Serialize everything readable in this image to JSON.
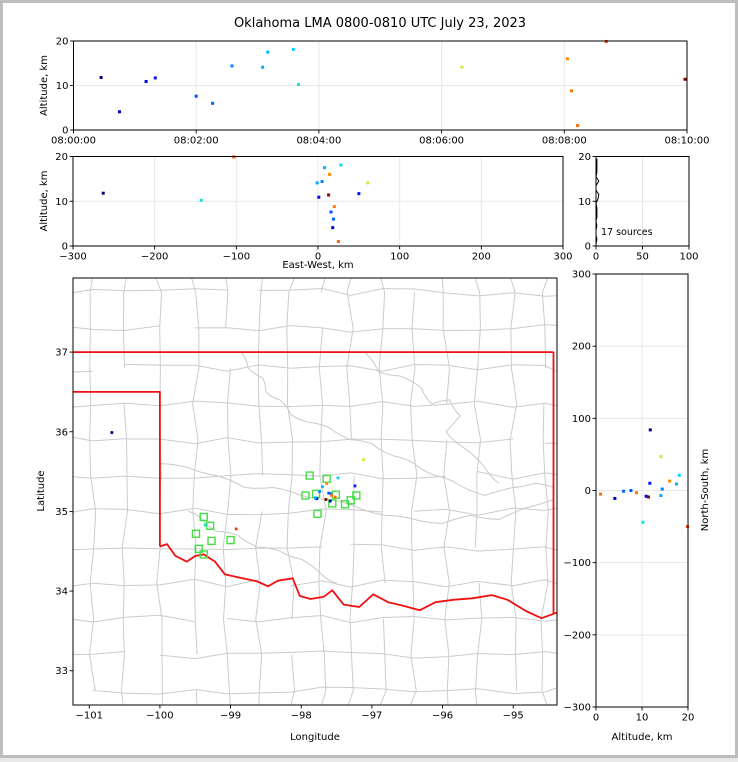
{
  "title": "Oklahoma LMA 0800-0810 UTC July 23, 2023",
  "annotation": {
    "sources_count_label": "17 sources"
  },
  "colors": {
    "background": "#ffffff",
    "frame": "#bdbdbd",
    "axis": "#000000",
    "grid": "#e7e7e7",
    "county_line": "#cbcbcb",
    "river": "#c9c9c9",
    "state_border": "#f01010",
    "station_marker": "#44dd44",
    "histogram_line": "#000000"
  },
  "panels": {
    "time_height": {
      "ylabel": "Altitude, km",
      "xlim_s": [
        0,
        600
      ],
      "ylim_km": [
        0,
        20
      ],
      "xtick_values_s": [
        0,
        120,
        240,
        360,
        480,
        600
      ],
      "xtick_labels": [
        "08:00:00",
        "08:02:00",
        "08:04:00",
        "08:06:00",
        "08:08:00",
        "08:10:00"
      ],
      "ytick_values": [
        0,
        10,
        20
      ],
      "ytick_labels": [
        "0",
        "10",
        "20"
      ],
      "grid": true
    },
    "ew_height": {
      "xlabel": "East-West, km",
      "ylabel": "Altitude, km",
      "xlim_km": [
        -300,
        300
      ],
      "ylim_km": [
        0,
        20
      ],
      "xtick_values": [
        -300,
        -200,
        -100,
        0,
        100,
        200,
        300
      ],
      "xtick_labels": [
        "−300",
        "−200",
        "−100",
        "0",
        "100",
        "200",
        "300"
      ],
      "ytick_values": [
        0,
        10,
        20
      ],
      "ytick_labels": [
        "0",
        "10",
        "20"
      ],
      "grid": true
    },
    "height_histogram": {
      "xlim_sources": [
        0,
        100
      ],
      "ylim_km": [
        0,
        20
      ],
      "xtick_values": [
        0,
        50,
        100
      ],
      "xtick_labels": [
        "0",
        "50",
        "100"
      ],
      "ytick_values": [
        0,
        10,
        20
      ],
      "ytick_labels": [
        "0",
        "10",
        "20"
      ],
      "grid": true
    },
    "plan_view": {
      "xlabel": "Longitude",
      "ylabel": "Latitude",
      "xlim_deg": [
        -101.23,
        -94.38
      ],
      "ylim_deg": [
        32.57,
        37.93
      ],
      "xtick_values": [
        -101,
        -100,
        -99,
        -98,
        -97,
        -96,
        -95
      ],
      "xtick_labels": [
        "−101",
        "−100",
        "−99",
        "−98",
        "−97",
        "−96",
        "−95"
      ],
      "ytick_values": [
        33,
        34,
        35,
        36,
        37
      ],
      "ytick_labels": [
        "33",
        "34",
        "35",
        "36",
        "37"
      ],
      "grid": false
    },
    "ns_height": {
      "xlabel": "Altitude, km",
      "ylabel": "North-South, km",
      "xlim_km": [
        0,
        20
      ],
      "ylim_km": [
        -300,
        300
      ],
      "xtick_values": [
        0,
        10,
        20
      ],
      "xtick_labels": [
        "0",
        "10",
        "20"
      ],
      "ytick_values": [
        -300,
        -200,
        -100,
        0,
        100,
        200,
        300
      ],
      "ytick_labels": [
        "−300",
        "−200",
        "−100",
        "0",
        "100",
        "200",
        "300"
      ],
      "grid": true
    }
  },
  "chart_data": {
    "type": "scatter",
    "title": "Oklahoma LMA 0800-0810 UTC July 23, 2023",
    "sources": [
      {
        "time_s": 27,
        "ew_km": -263,
        "ns_km": 84,
        "alt_km": 11.8,
        "lon": -100.68,
        "lat": 35.99,
        "color": "#000080"
      },
      {
        "time_s": 45,
        "ew_km": 18,
        "ns_km": -11,
        "alt_km": 4.1,
        "lon": -97.59,
        "lat": 35.13,
        "color": "#0000cd"
      },
      {
        "time_s": 71,
        "ew_km": 1,
        "ns_km": -8,
        "alt_km": 10.9,
        "lon": -97.78,
        "lat": 35.16,
        "color": "#0000e8"
      },
      {
        "time_s": 80,
        "ew_km": 50,
        "ns_km": 10,
        "alt_km": 11.7,
        "lon": -97.24,
        "lat": 35.32,
        "color": "#0014ff"
      },
      {
        "time_s": 120,
        "ew_km": 16,
        "ns_km": 0,
        "alt_km": 7.6,
        "lon": -97.61,
        "lat": 35.23,
        "color": "#0050ff"
      },
      {
        "time_s": 136,
        "ew_km": 19,
        "ns_km": -1,
        "alt_km": 6.0,
        "lon": -97.58,
        "lat": 35.22,
        "color": "#0064ff"
      },
      {
        "time_s": 155,
        "ew_km": 5,
        "ns_km": 2,
        "alt_km": 14.4,
        "lon": -97.74,
        "lat": 35.25,
        "color": "#0082ff"
      },
      {
        "time_s": 185,
        "ew_km": -1,
        "ns_km": -7,
        "alt_km": 14.1,
        "lon": -97.8,
        "lat": 35.17,
        "color": "#00a8ff"
      },
      {
        "time_s": 190,
        "ew_km": 8,
        "ns_km": 9,
        "alt_km": 17.5,
        "lon": -97.7,
        "lat": 35.31,
        "color": "#00b6ff"
      },
      {
        "time_s": 215,
        "ew_km": 28,
        "ns_km": 21,
        "alt_km": 18.1,
        "lon": -97.48,
        "lat": 35.42,
        "color": "#00d4ff"
      },
      {
        "time_s": 220,
        "ew_km": -143,
        "ns_km": -44,
        "alt_km": 10.2,
        "lon": -99.36,
        "lat": 34.83,
        "color": "#14e0e0"
      },
      {
        "time_s": 380,
        "ew_km": 61,
        "ns_km": 47,
        "alt_km": 14.1,
        "lon": -97.12,
        "lat": 35.65,
        "color": "#d6e632"
      },
      {
        "time_s": 483,
        "ew_km": 14,
        "ns_km": 13,
        "alt_km": 16.0,
        "lon": -97.64,
        "lat": 35.35,
        "color": "#ff8c00"
      },
      {
        "time_s": 487,
        "ew_km": 20,
        "ns_km": -3,
        "alt_km": 8.8,
        "lon": -97.57,
        "lat": 35.2,
        "color": "#ff7a00"
      },
      {
        "time_s": 493,
        "ew_km": 25,
        "ns_km": -5,
        "alt_km": 1.0,
        "lon": -97.52,
        "lat": 35.18,
        "color": "#ff6a00"
      },
      {
        "time_s": 521,
        "ew_km": -103,
        "ns_km": -50,
        "alt_km": 19.9,
        "lon": -98.92,
        "lat": 34.78,
        "color": "#ff3c00"
      },
      {
        "time_s": 598,
        "ew_km": 13,
        "ns_km": -9,
        "alt_km": 11.4,
        "lon": -97.65,
        "lat": 35.15,
        "color": "#8b0000"
      }
    ],
    "stations_lonlat": [
      [
        -97.88,
        35.45
      ],
      [
        -97.64,
        35.41
      ],
      [
        -97.79,
        35.22
      ],
      [
        -97.94,
        35.2
      ],
      [
        -97.51,
        35.21
      ],
      [
        -97.56,
        35.1
      ],
      [
        -97.38,
        35.09
      ],
      [
        -97.22,
        35.2
      ],
      [
        -97.3,
        35.14
      ],
      [
        -97.77,
        34.97
      ],
      [
        -99.38,
        34.93
      ],
      [
        -99.29,
        34.82
      ],
      [
        -99.49,
        34.72
      ],
      [
        -99.27,
        34.63
      ],
      [
        -99.0,
        34.64
      ],
      [
        -99.45,
        34.53
      ],
      [
        -99.38,
        34.46
      ]
    ],
    "altitude_histogram": {
      "bin_centers_km": [
        0.5,
        1.5,
        2.5,
        3.5,
        4.5,
        5.5,
        6.5,
        7.5,
        8.5,
        9.5,
        10.5,
        11.5,
        12.5,
        13.5,
        14.5,
        15.5,
        16.5,
        17.5,
        18.5,
        19.5
      ],
      "counts": [
        0,
        1,
        0,
        0,
        1,
        0,
        1,
        1,
        1,
        0,
        2,
        3,
        0,
        0,
        3,
        0,
        1,
        1,
        1,
        1
      ]
    },
    "map_geometry": {
      "state_border_segments": [
        [
          [
            -101.23,
            37.0
          ],
          [
            -94.43,
            37.0
          ]
        ],
        [
          [
            -94.43,
            37.0
          ],
          [
            -94.43,
            33.72
          ]
        ],
        [
          [
            -101.23,
            36.5
          ],
          [
            -100.0,
            36.5
          ],
          [
            -100.0,
            34.56
          ]
        ],
        [
          [
            -100.0,
            34.56
          ],
          [
            -99.9,
            34.59
          ],
          [
            -99.78,
            34.44
          ],
          [
            -99.62,
            34.37
          ],
          [
            -99.5,
            34.44
          ],
          [
            -99.38,
            34.46
          ],
          [
            -99.22,
            34.37
          ],
          [
            -99.08,
            34.21
          ],
          [
            -98.88,
            34.17
          ],
          [
            -98.62,
            34.12
          ],
          [
            -98.47,
            34.06
          ],
          [
            -98.33,
            34.13
          ],
          [
            -98.12,
            34.16
          ],
          [
            -98.02,
            33.94
          ],
          [
            -97.87,
            33.9
          ],
          [
            -97.68,
            33.93
          ],
          [
            -97.56,
            34.01
          ],
          [
            -97.4,
            33.83
          ],
          [
            -97.18,
            33.8
          ],
          [
            -96.98,
            33.96
          ],
          [
            -96.77,
            33.86
          ],
          [
            -96.58,
            33.82
          ],
          [
            -96.32,
            33.76
          ],
          [
            -96.1,
            33.86
          ],
          [
            -95.85,
            33.89
          ],
          [
            -95.58,
            33.91
          ],
          [
            -95.3,
            33.95
          ],
          [
            -95.08,
            33.89
          ],
          [
            -94.82,
            33.75
          ],
          [
            -94.6,
            33.66
          ],
          [
            -94.38,
            33.73
          ]
        ]
      ],
      "county_grid_lons": [
        -100.95,
        -100.5,
        -100.0,
        -99.5,
        -99.05,
        -98.6,
        -98.15,
        -97.7,
        -97.3,
        -96.85,
        -96.4,
        -95.95,
        -95.5,
        -95.0,
        -94.55
      ],
      "county_grid_lats": [
        32.75,
        33.2,
        33.65,
        34.1,
        34.55,
        35.0,
        35.45,
        35.9,
        36.35,
        36.8,
        37.3,
        37.75
      ],
      "rivers": [
        [
          [
            -98.85,
            37.0
          ],
          [
            -98.75,
            36.8
          ],
          [
            -98.55,
            36.68
          ],
          [
            -98.5,
            36.5
          ],
          [
            -98.3,
            36.4
          ],
          [
            -98.15,
            36.22
          ],
          [
            -97.9,
            36.12
          ],
          [
            -97.6,
            36.05
          ],
          [
            -97.3,
            35.9
          ],
          [
            -97.0,
            35.85
          ],
          [
            -96.7,
            35.7
          ],
          [
            -96.4,
            35.6
          ],
          [
            -96.1,
            35.45
          ],
          [
            -95.8,
            35.35
          ],
          [
            -95.4,
            35.2
          ],
          [
            -95.0,
            35.3
          ],
          [
            -94.7,
            35.35
          ],
          [
            -94.43,
            35.3
          ]
        ],
        [
          [
            -97.1,
            37.0
          ],
          [
            -96.9,
            36.75
          ],
          [
            -96.6,
            36.7
          ],
          [
            -96.3,
            36.55
          ],
          [
            -96.15,
            36.35
          ],
          [
            -95.9,
            36.4
          ],
          [
            -95.75,
            36.2
          ],
          [
            -95.95,
            36.0
          ],
          [
            -95.7,
            35.8
          ],
          [
            -95.4,
            35.55
          ],
          [
            -95.2,
            35.35
          ]
        ],
        [
          [
            -100.0,
            35.6
          ],
          [
            -99.6,
            35.55
          ],
          [
            -99.2,
            35.45
          ],
          [
            -98.8,
            35.3
          ],
          [
            -98.4,
            35.3
          ],
          [
            -98.0,
            35.2
          ],
          [
            -97.6,
            35.15
          ],
          [
            -97.2,
            35.05
          ],
          [
            -96.8,
            34.95
          ],
          [
            -96.4,
            34.9
          ],
          [
            -96.0,
            34.85
          ],
          [
            -95.6,
            34.95
          ],
          [
            -95.2,
            34.9
          ],
          [
            -94.8,
            35.05
          ],
          [
            -94.43,
            35.15
          ]
        ],
        [
          [
            -99.6,
            35.0
          ],
          [
            -99.4,
            34.9
          ],
          [
            -99.2,
            34.75
          ],
          [
            -98.9,
            34.7
          ],
          [
            -98.6,
            34.55
          ],
          [
            -98.3,
            34.5
          ],
          [
            -98.0,
            34.4
          ],
          [
            -97.7,
            34.2
          ],
          [
            -97.5,
            34.1
          ]
        ]
      ]
    }
  }
}
